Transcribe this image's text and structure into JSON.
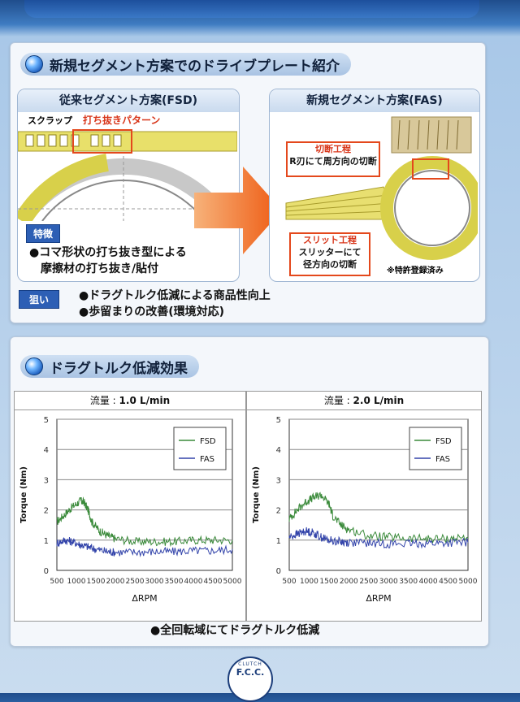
{
  "top_banner_color": "#2a66b0",
  "section1": {
    "title": "新規セグメント方案でのドライブプレート紹介",
    "left": {
      "title": "従来セグメント方案(FSD)",
      "scrap_label": "スクラップ",
      "pattern_label": "打ち抜きパターン",
      "feature_tag": "特徴",
      "feature_lines": [
        "●コマ形状の打ち抜き型による",
        "摩擦材の打ち抜き/貼付"
      ]
    },
    "right": {
      "title": "新規セグメント方案(FAS)",
      "cut_title": "切断工程",
      "cut_desc": "R刃にて周方向の切断",
      "slit_title": "スリット工程",
      "slit_desc1": "スリッターにて",
      "slit_desc2": "径方向の切断",
      "patent_note": "※特許登録済み"
    },
    "aim_tag": "狙い",
    "aim_lines": [
      "●ドラグトルク低減による商品性向上",
      "●歩留まりの改善(環境対応)"
    ]
  },
  "section2": {
    "title": "ドラグトルク低減効果",
    "footer_bullet": "●全回転域にてドラグトルク低減"
  },
  "chart_data": [
    {
      "type": "line",
      "title_prefix": "流量 : ",
      "title_value": "1.0 L/min",
      "xlabel": "ΔRPM",
      "ylabel": "Torque (Nm)",
      "xlim": [
        500,
        5000
      ],
      "ylim": [
        0,
        5
      ],
      "xticks": [
        500,
        1000,
        1500,
        2000,
        2500,
        3000,
        3500,
        4000,
        4500,
        5000
      ],
      "yticks": [
        0,
        1,
        2,
        3,
        4,
        5
      ],
      "grid": true,
      "legend_position": "top-right",
      "series": [
        {
          "name": "FSD",
          "color": "#3a8a3a",
          "x": [
            500,
            700,
            900,
            1100,
            1200,
            1300,
            1400,
            1600,
            1800,
            2000,
            2500,
            3000,
            3500,
            4000,
            4500,
            5000
          ],
          "y": [
            1.6,
            1.85,
            2.1,
            2.3,
            2.25,
            2.0,
            1.6,
            1.3,
            1.15,
            1.05,
            0.95,
            0.95,
            0.95,
            1.0,
            1.0,
            1.0
          ]
        },
        {
          "name": "FAS",
          "color": "#3344aa",
          "x": [
            500,
            700,
            900,
            1100,
            1300,
            1500,
            1800,
            2000,
            2500,
            3000,
            3500,
            4000,
            4500,
            5000
          ],
          "y": [
            0.9,
            1.0,
            0.95,
            0.85,
            0.78,
            0.7,
            0.62,
            0.6,
            0.6,
            0.62,
            0.62,
            0.65,
            0.65,
            0.7
          ]
        }
      ]
    },
    {
      "type": "line",
      "title_prefix": "流量 : ",
      "title_value": "2.0 L/min",
      "xlabel": "ΔRPM",
      "ylabel": "Torque (Nm)",
      "xlim": [
        500,
        5000
      ],
      "ylim": [
        0,
        5
      ],
      "xticks": [
        500,
        1000,
        1500,
        2000,
        2500,
        3000,
        3500,
        4000,
        4500,
        5000
      ],
      "yticks": [
        0,
        1,
        2,
        3,
        4,
        5
      ],
      "grid": true,
      "legend_position": "top-right",
      "series": [
        {
          "name": "FSD",
          "color": "#3a8a3a",
          "x": [
            500,
            700,
            900,
            1100,
            1300,
            1500,
            1600,
            1800,
            2000,
            2500,
            3000,
            3500,
            4000,
            4500,
            5000
          ],
          "y": [
            1.7,
            2.0,
            2.25,
            2.4,
            2.5,
            2.2,
            1.8,
            1.5,
            1.35,
            1.15,
            1.1,
            1.05,
            1.05,
            1.05,
            1.1
          ]
        },
        {
          "name": "FAS",
          "color": "#3344aa",
          "x": [
            500,
            700,
            900,
            1100,
            1300,
            1500,
            1800,
            2000,
            2500,
            3000,
            3500,
            4000,
            4500,
            5000
          ],
          "y": [
            1.1,
            1.2,
            1.3,
            1.25,
            1.1,
            1.0,
            0.95,
            0.92,
            0.9,
            0.88,
            0.88,
            0.9,
            0.9,
            0.92
          ]
        }
      ]
    }
  ],
  "logo": {
    "arc_text": "CLUTCH",
    "main_text": "F.C.C."
  }
}
